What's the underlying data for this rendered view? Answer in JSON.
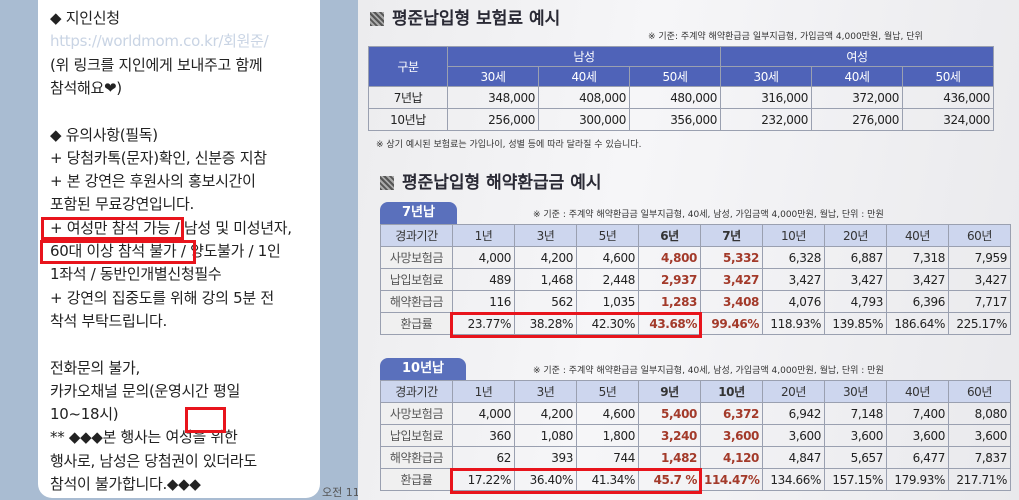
{
  "chat": {
    "lines": [
      "◆ 지인신청",
      "https://worldmom.co.kr/회원준/",
      "(위 링크를 지인에게 보내주고 함께",
      "참석해요❤)",
      "",
      "◆ 유의사항(필독)",
      "+ 당첨카톡(문자)확인, 신분증 지참",
      "+ 본 강연은 후원사의 홍보시간이",
      "포함된 무료강연입니다.",
      "+ 여성만 참석 가능 / 남성 및 미성년자,",
      "60대 이상 참석 불가 / 양도불가 / 1인",
      "1좌석 / 동반인개별신청필수",
      "+ 강연의 집중도를 위해 강의 5분 전",
      "착석 부탁드립니다.",
      "",
      "전화문의 불가,",
      "카카오채널 문의(운영시간 평일",
      "10~18시)",
      "** ◆◆◆본 행사는 여성을 위한",
      "행사로, 남성은 당첨권이 있더라도",
      "참석이 불가합니다.◆◆◆"
    ],
    "time": "오전 11"
  },
  "premium": {
    "title": "평준납입형 보험료 예시",
    "note": "※ 기준: 주계약 해약환급금 일부지급형, 가입금액 4,000만원, 월납, 단위",
    "col_group": "구분",
    "male": "남성",
    "female": "여성",
    "ages": [
      "30세",
      "40세",
      "50세",
      "30세",
      "40세",
      "50세"
    ],
    "rows": [
      {
        "label": "7년납",
        "values": [
          "348,000",
          "408,000",
          "480,000",
          "316,000",
          "372,000",
          "436,000"
        ]
      },
      {
        "label": "10년납",
        "values": [
          "256,000",
          "300,000",
          "356,000",
          "232,000",
          "276,000",
          "324,000"
        ]
      }
    ],
    "footnote": "※ 상기 예시된 보험료는 가입나이, 성별 등에 따라 달라질 수 있습니다."
  },
  "refund": {
    "title": "평준납입형 해약환급금 예시",
    "tables": [
      {
        "tab": "7년납",
        "note": "※ 기준 : 주계약 해약환급금 일부지급형, 40세, 남성, 가입금액 4,000만원, 월납, 단위 : 만원",
        "header": [
          "경과기간",
          "1년",
          "3년",
          "5년",
          "6년",
          "7년",
          "10년",
          "20년",
          "40년",
          "60년"
        ],
        "rows": [
          [
            "사망보험금",
            "4,000",
            "4,200",
            "4,600",
            "4,800",
            "5,332",
            "6,328",
            "6,887",
            "7,318",
            "7,959"
          ],
          [
            "납입보험료",
            "489",
            "1,468",
            "2,448",
            "2,937",
            "3,427",
            "3,427",
            "3,427",
            "3,427",
            "3,427"
          ],
          [
            "해약환급금",
            "116",
            "562",
            "1,035",
            "1,283",
            "3,408",
            "4,076",
            "4,793",
            "6,396",
            "7,717"
          ],
          [
            "환급률",
            "23.77%",
            "38.28%",
            "42.30%",
            "43.68%",
            "99.46%",
            "118.93%",
            "139.85%",
            "186.64%",
            "225.17%"
          ]
        ]
      },
      {
        "tab": "10년납",
        "note": "※ 기준 : 주계약 해약환급금 일부지급형, 40세, 남성, 가입금액 4,000만원, 월납, 단위 : 만원",
        "header": [
          "경과기간",
          "1년",
          "3년",
          "5년",
          "9년",
          "10년",
          "20년",
          "30년",
          "40년",
          "60년"
        ],
        "rows": [
          [
            "사망보험금",
            "4,000",
            "4,200",
            "4,600",
            "5,400",
            "6,372",
            "6,942",
            "7,148",
            "7,400",
            "8,080"
          ],
          [
            "납입보험료",
            "360",
            "1,080",
            "1,800",
            "3,240",
            "3,600",
            "3,600",
            "3,600",
            "3,600",
            "3,600"
          ],
          [
            "해약환급금",
            "62",
            "393",
            "744",
            "1,482",
            "4,120",
            "4,847",
            "5,657",
            "6,477",
            "7,837"
          ],
          [
            "환급률",
            "17.22%",
            "36.40%",
            "41.34%",
            "45.7 %",
            "114.47%",
            "134.66%",
            "157.15%",
            "179.93%",
            "217.71%"
          ]
        ]
      }
    ]
  },
  "colors": {
    "highlight_box": "#e8141c",
    "table_header": "#4f63b8",
    "emphasis_text": "#a33a2a",
    "chat_bg": "#a9bcd2"
  }
}
